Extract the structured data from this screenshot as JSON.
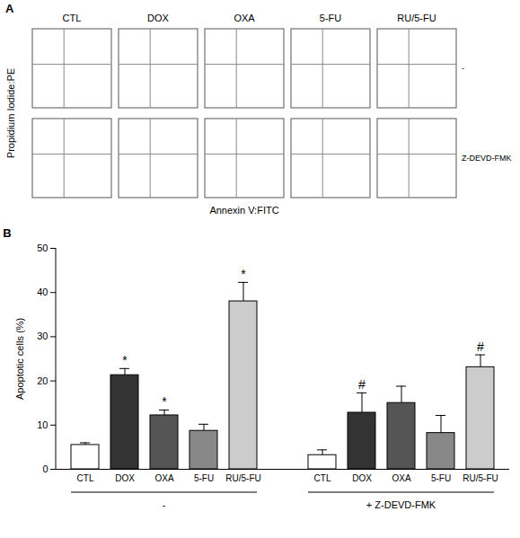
{
  "panel_a": {
    "letter": "A",
    "columns": [
      "CTL",
      "DOX",
      "OXA",
      "5-FU",
      "RU/5-FU"
    ],
    "rows": [
      "-",
      "Z-DEVD-FMK"
    ],
    "y_label": "Propidium Iodide:PE",
    "x_label": "Annexin V:FITC"
  },
  "panel_b_letter": "B",
  "chart_data": {
    "type": "bar",
    "y_label": "Apoptotic cells (%)",
    "categories": [
      "CTL",
      "DOX",
      "OXA",
      "5-FU",
      "RU/5-FU",
      "CTL",
      "DOX",
      "OXA",
      "5-FU",
      "RU/5-FU"
    ],
    "values": [
      5.5,
      21.3,
      12.2,
      8.7,
      38.0,
      3.2,
      12.8,
      15.0,
      8.2,
      23.1
    ],
    "errors": [
      0.5,
      1.5,
      1.2,
      1.5,
      4.3,
      1.2,
      4.5,
      3.8,
      4.0,
      2.8
    ],
    "colors": [
      "#ffffff",
      "#333333",
      "#555555",
      "#888888",
      "#cccccc",
      "#ffffff",
      "#333333",
      "#555555",
      "#888888",
      "#cccccc"
    ],
    "significance": [
      null,
      "*",
      "*",
      null,
      "*",
      null,
      "#",
      null,
      null,
      "#"
    ],
    "groups": [
      {
        "label": "-",
        "count": 5
      },
      {
        "label": "+ Z-DEVD-FMK",
        "count": 5
      }
    ],
    "ylim": [
      0,
      50
    ],
    "yticks": [
      0,
      10,
      20,
      30,
      40,
      50
    ]
  }
}
